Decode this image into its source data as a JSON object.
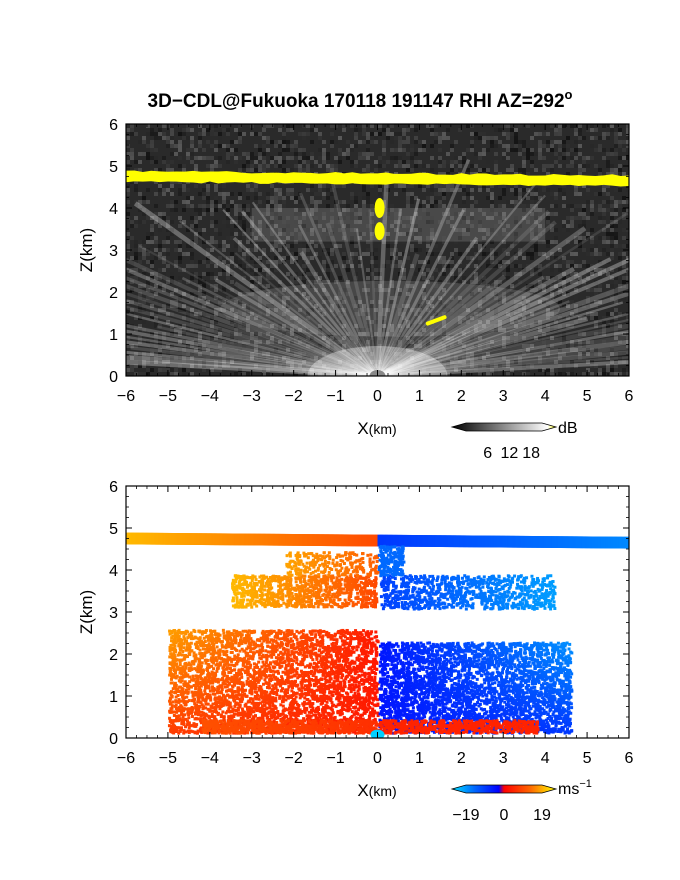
{
  "title": "3D−CDL@Fukuoka 170118 191147 RHI AZ=292",
  "title_superscript": "o",
  "chart_data": [
    {
      "type": "heatmap",
      "panel": "reflectivity",
      "xlabel_main": "X",
      "xlabel_unit": "(km)",
      "ylabel": "Z(km)",
      "xlim": [
        -6,
        6
      ],
      "ylim": [
        0,
        6
      ],
      "xticks": [
        "−6",
        "−5",
        "−4",
        "−3",
        "−2",
        "−1",
        "0",
        "1",
        "2",
        "3",
        "4",
        "5",
        "6"
      ],
      "yticks": [
        "0",
        "1",
        "2",
        "3",
        "4",
        "5",
        "6"
      ],
      "colorbar": {
        "unit": "dB",
        "ticks": [
          "6",
          "12",
          "18"
        ],
        "range": [
          0,
          21
        ]
      },
      "features": [
        {
          "name": "top-layer",
          "x": [
            -6,
            6
          ],
          "z": [
            4.75,
            4.65
          ],
          "intensity": "max",
          "color": "#ffff00"
        },
        {
          "name": "core",
          "x": [
            0,
            0.05
          ],
          "z": [
            3.3,
            4.2
          ],
          "intensity": "max",
          "color": "#ffff00"
        },
        {
          "name": "spot",
          "x": [
            1.2,
            1.6
          ],
          "z": [
            1.25,
            1.4
          ],
          "intensity": "max",
          "color": "#ffff00"
        },
        {
          "name": "mid-layer",
          "x": [
            -3,
            4
          ],
          "z": [
            3.2,
            4.0
          ],
          "intensity": "medium"
        },
        {
          "name": "lower-fan",
          "x": [
            -4,
            4.5
          ],
          "z": [
            0,
            2.5
          ],
          "intensity": "medium"
        }
      ],
      "colors": {
        "background": "#2a2a2a",
        "noise": "#555555",
        "high": "#ffff00"
      }
    },
    {
      "type": "heatmap",
      "panel": "doppler-velocity",
      "xlabel_main": "X",
      "xlabel_unit": "(km)",
      "ylabel": "Z(km)",
      "xlim": [
        -6,
        6
      ],
      "ylim": [
        0,
        6
      ],
      "xticks": [
        "−6",
        "−5",
        "−4",
        "−3",
        "−2",
        "−1",
        "0",
        "1",
        "2",
        "3",
        "4",
        "5",
        "6"
      ],
      "yticks": [
        "0",
        "1",
        "2",
        "3",
        "4",
        "5",
        "6"
      ],
      "colorbar": {
        "unit": "ms",
        "unit_exponent": "−1",
        "ticks": [
          "−19",
          "0",
          "19"
        ],
        "range": [
          -19,
          19
        ]
      },
      "features": [
        {
          "name": "top-layer",
          "x": [
            -6,
            6
          ],
          "z": [
            4.75,
            4.65
          ],
          "velocity_left": 16,
          "velocity_right": -13
        },
        {
          "name": "mid-layer",
          "x": [
            -3.5,
            4.2
          ],
          "z": [
            3.1,
            4.3
          ],
          "velocity_left": 12,
          "velocity_right": -12
        },
        {
          "name": "lower-fan",
          "x": [
            -5,
            4.6
          ],
          "z": [
            0.1,
            2.6
          ],
          "velocity_left": 6,
          "velocity_right": -6
        }
      ],
      "colors": {
        "positive": "#ff3300",
        "negative": "#2244ff",
        "near_zero": "#ff0000"
      }
    }
  ]
}
